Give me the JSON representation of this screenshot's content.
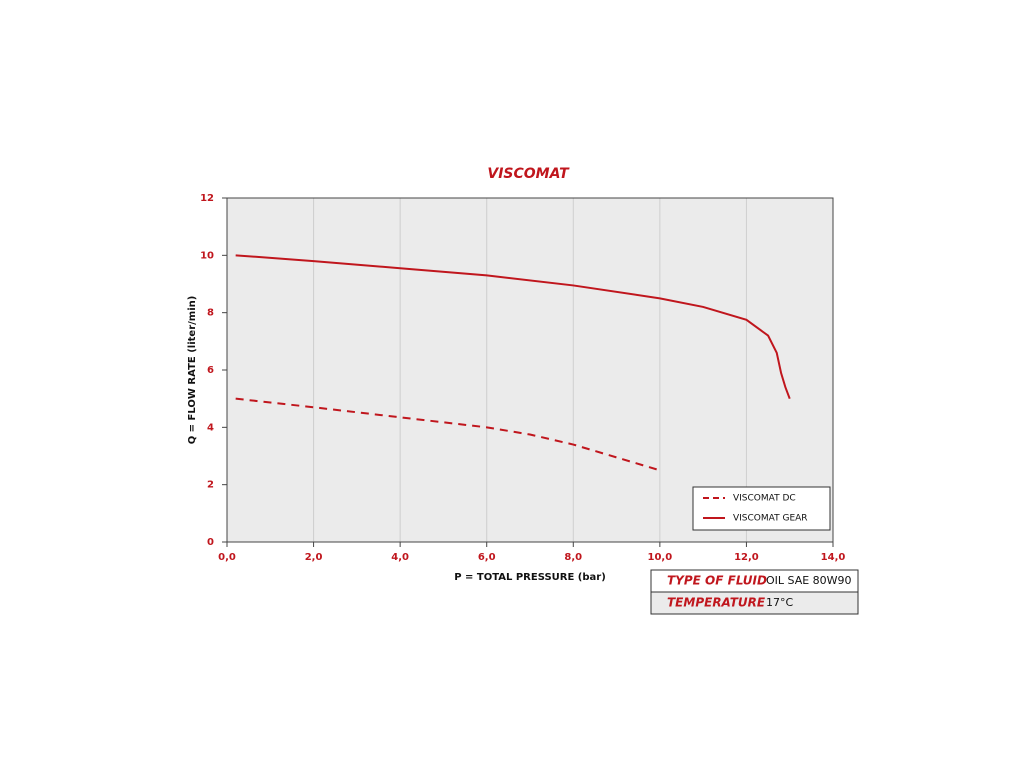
{
  "chart_data": {
    "type": "line",
    "title": "VISCOMAT",
    "xlabel": "P = TOTAL PRESSURE (bar)",
    "ylabel": "Q = FLOW RATE (liter/min)",
    "xlim": [
      0,
      14
    ],
    "ylim": [
      0,
      12
    ],
    "xticks": [
      {
        "value": 0,
        "label": "0,0"
      },
      {
        "value": 2,
        "label": "2,0"
      },
      {
        "value": 4,
        "label": "4,0"
      },
      {
        "value": 6,
        "label": "6,0"
      },
      {
        "value": 8,
        "label": "8,0"
      },
      {
        "value": 10,
        "label": "10,0"
      },
      {
        "value": 12,
        "label": "12,0"
      },
      {
        "value": 14,
        "label": "14,0"
      }
    ],
    "yticks": [
      0,
      2,
      4,
      6,
      8,
      10,
      12
    ],
    "grid": "x",
    "legend": "lower right",
    "series": [
      {
        "name": "VISCOMAT DC",
        "color": "#c0161d",
        "style": "dashed",
        "x": [
          0.2,
          2,
          4,
          6,
          7,
          8,
          9,
          10
        ],
        "values": [
          5.0,
          4.7,
          4.35,
          4.0,
          3.75,
          3.4,
          2.95,
          2.5
        ]
      },
      {
        "name": "VISCOMAT GEAR",
        "color": "#c0161d",
        "style": "solid",
        "x": [
          0.2,
          2,
          4,
          6,
          8,
          10,
          11,
          12,
          12.5,
          12.7,
          12.8,
          12.9,
          13.0
        ],
        "values": [
          10,
          9.8,
          9.55,
          9.3,
          8.95,
          8.5,
          8.2,
          7.75,
          7.2,
          6.6,
          5.9,
          5.4,
          5.0
        ]
      }
    ]
  },
  "fluid_table": {
    "rows": [
      [
        "TYPE OF FLUID",
        "OIL SAE 80W90"
      ],
      [
        "TEMPERATURE",
        "17°C"
      ]
    ]
  }
}
